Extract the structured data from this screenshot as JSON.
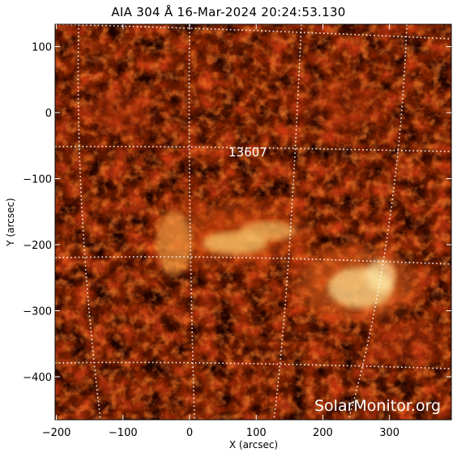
{
  "title": "AIA 304 Å 16-Mar-2024  20:24:53.130",
  "x_axis": {
    "label": "X (arcsec)",
    "ticks": [
      {
        "value": -200,
        "label": "−200"
      },
      {
        "value": -100,
        "label": "−100"
      },
      {
        "value": 0,
        "label": "0"
      },
      {
        "value": 100,
        "label": "100"
      },
      {
        "value": 200,
        "label": "200"
      },
      {
        "value": 300,
        "label": "300"
      }
    ]
  },
  "y_axis": {
    "label": "Y (arcsec)",
    "ticks": [
      {
        "value": 100,
        "label": "100"
      },
      {
        "value": 0,
        "label": "0"
      },
      {
        "value": -100,
        "label": "−100"
      },
      {
        "value": -200,
        "label": "−200"
      },
      {
        "value": -300,
        "label": "−300"
      },
      {
        "value": -400,
        "label": "−400"
      }
    ]
  },
  "active_region": {
    "label": "13607",
    "x": 97,
    "y": -57
  },
  "watermark": "SolarMonitor.org",
  "colors": {
    "background": "#000000",
    "emission_low": "#5a0a00",
    "emission_mid": "#c83a0a",
    "emission_high": "#ffd070"
  }
}
